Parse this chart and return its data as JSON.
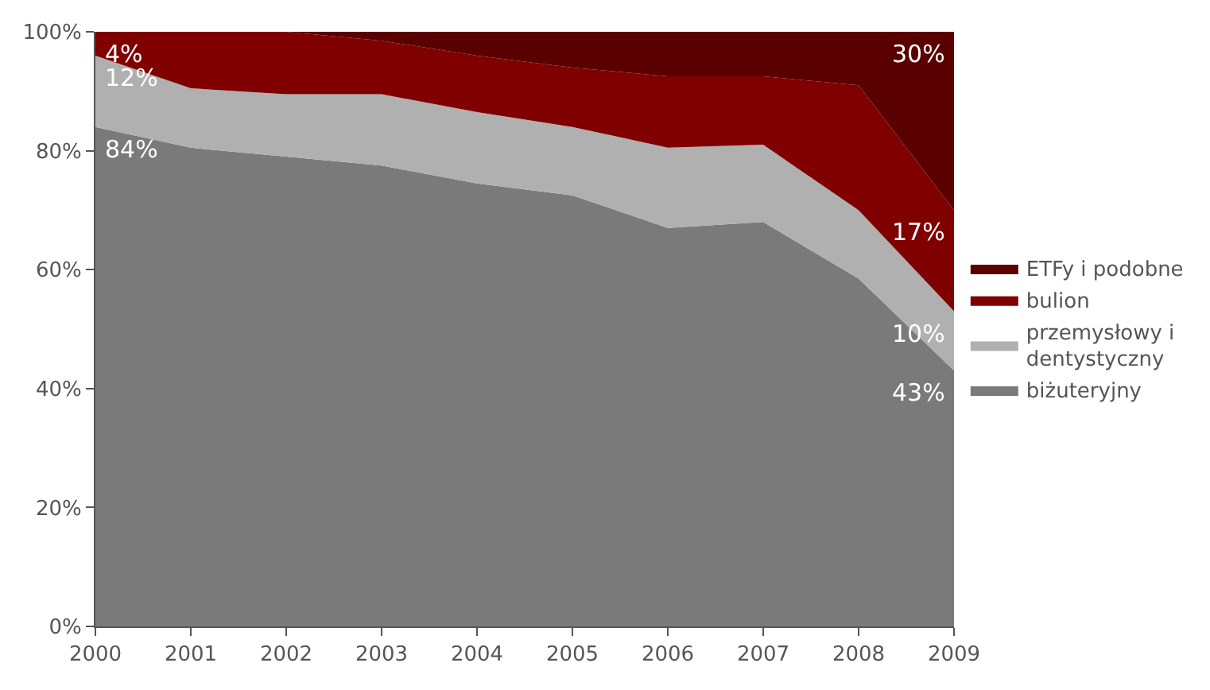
{
  "chart_data": {
    "type": "area",
    "stacked": true,
    "x": [
      2000,
      2001,
      2002,
      2003,
      2004,
      2005,
      2006,
      2007,
      2008,
      2009
    ],
    "series": [
      {
        "name": "biżuteryjny",
        "color": "#7a7a7a",
        "values": [
          84,
          80.5,
          79,
          77.5,
          74.5,
          72.5,
          67,
          68,
          58.5,
          43
        ],
        "value_labels": [
          "84%",
          null,
          null,
          null,
          null,
          null,
          null,
          null,
          null,
          "43%"
        ]
      },
      {
        "name": "przemysłowy i dentystyczny",
        "color": "#b0b0b0",
        "values": [
          12,
          10,
          10.5,
          12,
          12,
          11.5,
          13.5,
          13,
          11.5,
          10
        ],
        "value_labels": [
          "12%",
          null,
          null,
          null,
          null,
          null,
          null,
          null,
          null,
          "10%"
        ]
      },
      {
        "name": "bulion",
        "color": "#800000",
        "values": [
          4,
          9.5,
          10.5,
          9,
          9.5,
          10,
          12,
          11.5,
          21,
          17
        ],
        "value_labels": [
          "4%",
          null,
          null,
          null,
          null,
          null,
          null,
          null,
          null,
          "17%"
        ]
      },
      {
        "name": "ETFy i podobne",
        "color": "#5a0000",
        "values": [
          0,
          0,
          0,
          1.5,
          4,
          6,
          7.5,
          7.5,
          9,
          30
        ],
        "value_labels": [
          null,
          null,
          null,
          null,
          null,
          null,
          null,
          null,
          null,
          "30%"
        ]
      }
    ],
    "xlim": [
      2000,
      2009
    ],
    "xticks": [
      2000,
      2001,
      2002,
      2003,
      2004,
      2005,
      2006,
      2007,
      2008,
      2009
    ],
    "ylim": [
      0,
      100
    ],
    "yticks": [
      {
        "value": 0,
        "label": "0%"
      },
      {
        "value": 20,
        "label": "20%"
      },
      {
        "value": 40,
        "label": "40%"
      },
      {
        "value": 60,
        "label": "60%"
      },
      {
        "value": 80,
        "label": "80%"
      },
      {
        "value": 100,
        "label": "100%"
      }
    ],
    "legend": "right"
  }
}
